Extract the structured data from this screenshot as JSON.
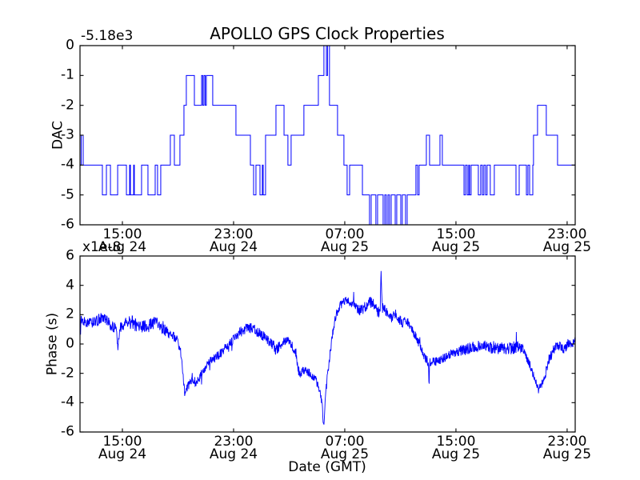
{
  "figure": {
    "title": "APOLLO GPS Clock Properties",
    "background": "#ffffff",
    "axis_color": "#000000"
  },
  "chart_data": [
    {
      "type": "line",
      "subplot": "top",
      "title": "APOLLO GPS Clock Properties",
      "ylabel": "DAC",
      "offset_text": "-5.18e3",
      "line_color": "#0000ff",
      "drawstyle": "steps-post",
      "ylim": [
        -6,
        0
      ],
      "yticks": [
        0,
        -1,
        -2,
        -3,
        -4,
        -5,
        -6
      ],
      "ytick_labels": [
        "0",
        "-1",
        "-2",
        "-3",
        "-4",
        "-5",
        "-6"
      ],
      "x_hours_span": [
        0,
        35.63
      ],
      "xticks_hours": [
        3.05,
        11.05,
        19.05,
        27.05,
        35.05
      ],
      "xtick_labels": [
        {
          "time": "15:00",
          "date": "Aug 24"
        },
        {
          "time": "23:00",
          "date": "Aug 24"
        },
        {
          "time": "07:00",
          "date": "Aug 25"
        },
        {
          "time": "15:00",
          "date": "Aug 25"
        },
        {
          "time": "23:00",
          "date": "Aug 25"
        }
      ],
      "steps": [
        [
          0,
          -4
        ],
        [
          0.09,
          -3
        ],
        [
          0.23,
          -4
        ],
        [
          1.61,
          -5
        ],
        [
          1.9,
          -4
        ],
        [
          2.19,
          -5
        ],
        [
          2.71,
          -4
        ],
        [
          3.34,
          -5
        ],
        [
          3.57,
          -4
        ],
        [
          3.63,
          -5
        ],
        [
          3.86,
          -4
        ],
        [
          3.91,
          -5
        ],
        [
          4.43,
          -4
        ],
        [
          4.89,
          -5
        ],
        [
          5.41,
          -4
        ],
        [
          5.58,
          -5
        ],
        [
          5.81,
          -4
        ],
        [
          6.5,
          -3
        ],
        [
          6.79,
          -4
        ],
        [
          7.19,
          -3
        ],
        [
          7.48,
          -2
        ],
        [
          7.65,
          -1
        ],
        [
          8.23,
          -2
        ],
        [
          8.75,
          -1
        ],
        [
          8.83,
          -2
        ],
        [
          8.92,
          -1
        ],
        [
          9.01,
          -2
        ],
        [
          9.09,
          -1
        ],
        [
          9.55,
          -2
        ],
        [
          11.22,
          -3
        ],
        [
          12.26,
          -4
        ],
        [
          12.49,
          -5
        ],
        [
          12.66,
          -4
        ],
        [
          12.95,
          -5
        ],
        [
          13.12,
          -4
        ],
        [
          13.18,
          -5
        ],
        [
          13.35,
          -3
        ],
        [
          14.1,
          -2
        ],
        [
          14.68,
          -3
        ],
        [
          14.96,
          -4
        ],
        [
          15.19,
          -3
        ],
        [
          16.11,
          -2
        ],
        [
          17.15,
          -1
        ],
        [
          17.55,
          0
        ],
        [
          17.73,
          -1
        ],
        [
          17.81,
          0
        ],
        [
          17.95,
          -2
        ],
        [
          18.53,
          -3
        ],
        [
          18.99,
          -4
        ],
        [
          19.22,
          -5
        ],
        [
          19.4,
          -4
        ],
        [
          20.32,
          -5
        ],
        [
          20.83,
          -6
        ],
        [
          20.95,
          -5
        ],
        [
          21.29,
          -6
        ],
        [
          21.41,
          -5
        ],
        [
          21.81,
          -6
        ],
        [
          21.93,
          -5
        ],
        [
          22.04,
          -6
        ],
        [
          22.16,
          -5
        ],
        [
          22.27,
          -6
        ],
        [
          22.39,
          -5
        ],
        [
          22.68,
          -6
        ],
        [
          22.79,
          -5
        ],
        [
          23.08,
          -6
        ],
        [
          23.19,
          -5
        ],
        [
          23.42,
          -6
        ],
        [
          23.54,
          -5
        ],
        [
          24.17,
          -4
        ],
        [
          24.29,
          -5
        ],
        [
          24.4,
          -4
        ],
        [
          24.92,
          -3
        ],
        [
          25.15,
          -4
        ],
        [
          25.9,
          -3
        ],
        [
          26.07,
          -4
        ],
        [
          27.63,
          -5
        ],
        [
          27.74,
          -4
        ],
        [
          27.86,
          -5
        ],
        [
          27.97,
          -4
        ],
        [
          28.03,
          -5
        ],
        [
          28.14,
          -4
        ],
        [
          28.66,
          -5
        ],
        [
          28.83,
          -4
        ],
        [
          28.95,
          -5
        ],
        [
          29.06,
          -4
        ],
        [
          29.18,
          -5
        ],
        [
          29.29,
          -4
        ],
        [
          29.52,
          -5
        ],
        [
          29.81,
          -4
        ],
        [
          31.37,
          -5
        ],
        [
          31.6,
          -4
        ],
        [
          32.12,
          -5
        ],
        [
          32.23,
          -4
        ],
        [
          32.35,
          -5
        ],
        [
          32.58,
          -4
        ],
        [
          32.63,
          -3
        ],
        [
          32.92,
          -2
        ],
        [
          33.55,
          -3
        ],
        [
          34.36,
          -4
        ],
        [
          35.63,
          -4
        ]
      ]
    },
    {
      "type": "line",
      "subplot": "bottom",
      "ylabel": "Phase (s)",
      "offset_text": "x1e-8",
      "xlabel": "Date (GMT)",
      "line_color": "#0000ff",
      "units": "1e-8 s",
      "ylim": [
        -6,
        6
      ],
      "yticks": [
        6,
        4,
        2,
        0,
        -2,
        -4,
        -6
      ],
      "ytick_labels": [
        "6",
        "4",
        "2",
        "0",
        "-2",
        "-4",
        "-6"
      ],
      "x_hours_span": [
        0,
        35.63
      ],
      "xticks_hours": [
        3.05,
        11.05,
        19.05,
        27.05,
        35.05
      ],
      "xtick_labels": [
        {
          "time": "15:00",
          "date": "Aug 24"
        },
        {
          "time": "23:00",
          "date": "Aug 24"
        },
        {
          "time": "07:00",
          "date": "Aug 25"
        },
        {
          "time": "15:00",
          "date": "Aug 25"
        },
        {
          "time": "23:00",
          "date": "Aug 25"
        }
      ],
      "anchors": [
        [
          0,
          1.7,
          0.35
        ],
        [
          0.6,
          1.4,
          0.35
        ],
        [
          1.2,
          1.6,
          0.4
        ],
        [
          1.7,
          1.8,
          0.4
        ],
        [
          2.3,
          1.2,
          0.35
        ],
        [
          2.6,
          1.0,
          0.4
        ],
        [
          2.73,
          -0.3,
          0.2
        ],
        [
          2.85,
          1.0,
          0.4
        ],
        [
          3.2,
          1.4,
          0.35
        ],
        [
          3.7,
          1.5,
          0.5
        ],
        [
          4.3,
          1.1,
          0.45
        ],
        [
          4.9,
          1.3,
          0.4
        ],
        [
          5.5,
          1.5,
          0.45
        ],
        [
          6.0,
          1.0,
          0.4
        ],
        [
          6.6,
          0.6,
          0.35
        ],
        [
          7.0,
          0.3,
          0.3
        ],
        [
          7.3,
          -0.8,
          0.3
        ],
        [
          7.48,
          -3.0,
          0.5
        ],
        [
          7.6,
          -3.2,
          0.45
        ],
        [
          7.77,
          -2.8,
          0.35
        ],
        [
          8.06,
          -2.5,
          0.35
        ],
        [
          8.35,
          -2.6,
          0.3
        ],
        [
          8.63,
          -2.2,
          0.3
        ],
        [
          8.92,
          -1.8,
          0.3
        ],
        [
          9.21,
          -1.3,
          0.3
        ],
        [
          9.78,
          -0.9,
          0.3
        ],
        [
          10.36,
          -0.4,
          0.3
        ],
        [
          10.94,
          0.2,
          0.3
        ],
        [
          11.51,
          0.8,
          0.35
        ],
        [
          12.09,
          1.2,
          0.4
        ],
        [
          12.66,
          0.9,
          0.35
        ],
        [
          13.24,
          0.5,
          0.35
        ],
        [
          13.81,
          0.0,
          0.35
        ],
        [
          14.1,
          -0.4,
          0.4
        ],
        [
          14.39,
          -0.1,
          0.35
        ],
        [
          14.68,
          0.2,
          0.3
        ],
        [
          14.96,
          0.2,
          0.3
        ],
        [
          15.25,
          -0.1,
          0.3
        ],
        [
          15.54,
          -0.6,
          0.3
        ],
        [
          15.71,
          -1.8,
          0.3
        ],
        [
          15.88,
          -2.0,
          0.3
        ],
        [
          16.11,
          -1.8,
          0.3
        ],
        [
          16.4,
          -1.9,
          0.3
        ],
        [
          16.69,
          -2.1,
          0.3
        ],
        [
          16.98,
          -2.5,
          0.3
        ],
        [
          17.27,
          -3.2,
          0.3
        ],
        [
          17.44,
          -4.2,
          0.25
        ],
        [
          17.52,
          -5.7,
          0.15
        ],
        [
          17.6,
          -4.8,
          0.25
        ],
        [
          17.67,
          -3.5,
          0.3
        ],
        [
          17.84,
          -1.8,
          0.3
        ],
        [
          18.01,
          -0.5,
          0.3
        ],
        [
          18.19,
          0.8,
          0.3
        ],
        [
          18.42,
          2.0,
          0.3
        ],
        [
          18.71,
          2.6,
          0.3
        ],
        [
          18.99,
          2.9,
          0.3
        ],
        [
          19.28,
          3.0,
          0.3
        ],
        [
          19.57,
          2.7,
          0.3
        ],
        [
          20.14,
          2.3,
          0.35
        ],
        [
          20.43,
          2.4,
          0.4
        ],
        [
          20.72,
          2.7,
          0.4
        ],
        [
          21.01,
          2.9,
          0.45
        ],
        [
          21.29,
          2.5,
          0.4
        ],
        [
          21.45,
          2.1,
          0.4
        ],
        [
          21.6,
          2.6,
          0.5
        ],
        [
          21.66,
          5.0,
          0.3
        ],
        [
          21.72,
          2.6,
          0.5
        ],
        [
          21.87,
          2.4,
          0.4
        ],
        [
          22.16,
          2.0,
          0.35
        ],
        [
          22.45,
          1.7,
          0.35
        ],
        [
          22.6,
          2.0,
          0.35
        ],
        [
          22.73,
          2.1,
          0.35
        ],
        [
          23.02,
          1.6,
          0.35
        ],
        [
          23.31,
          1.4,
          0.35
        ],
        [
          23.45,
          1.7,
          0.35
        ],
        [
          23.6,
          1.5,
          0.35
        ],
        [
          23.88,
          1.0,
          0.3
        ],
        [
          24.17,
          0.5,
          0.3
        ],
        [
          24.46,
          -0.1,
          0.3
        ],
        [
          24.75,
          -0.8,
          0.3
        ],
        [
          25.04,
          -1.2,
          0.3
        ],
        [
          25.08,
          -1.3,
          0.3
        ],
        [
          25.11,
          -3.2,
          0.15
        ],
        [
          25.15,
          -1.3,
          0.3
        ],
        [
          25.32,
          -1.1,
          0.3
        ],
        [
          25.61,
          -1.2,
          0.3
        ],
        [
          25.9,
          -1.1,
          0.3
        ],
        [
          26.47,
          -0.8,
          0.3
        ],
        [
          27.05,
          -0.55,
          0.3
        ],
        [
          27.62,
          -0.4,
          0.4
        ],
        [
          28.2,
          -0.25,
          0.4
        ],
        [
          28.78,
          -0.15,
          0.4
        ],
        [
          29.1,
          0.1,
          0.45
        ],
        [
          29.35,
          -0.3,
          0.4
        ],
        [
          29.93,
          -0.2,
          0.45
        ],
        [
          30.5,
          -0.35,
          0.45
        ],
        [
          31.08,
          -0.25,
          0.45
        ],
        [
          31.65,
          -0.2,
          0.4
        ],
        [
          31.94,
          -0.5,
          0.35
        ],
        [
          32.23,
          -1.1,
          0.3
        ],
        [
          32.46,
          -1.6,
          0.3
        ],
        [
          32.69,
          -2.3,
          0.3
        ],
        [
          32.92,
          -2.9,
          0.3
        ],
        [
          33.0,
          -3.2,
          0.3
        ],
        [
          33.15,
          -2.9,
          0.3
        ],
        [
          33.38,
          -2.4,
          0.3
        ],
        [
          33.61,
          -1.6,
          0.3
        ],
        [
          33.84,
          -0.9,
          0.35
        ],
        [
          34.07,
          -0.4,
          0.35
        ],
        [
          34.3,
          -0.15,
          0.35
        ],
        [
          34.53,
          -0.1,
          0.35
        ],
        [
          34.82,
          -0.3,
          0.35
        ],
        [
          35.11,
          0.0,
          0.35
        ],
        [
          35.4,
          -0.1,
          0.35
        ],
        [
          35.63,
          0.2,
          0.3
        ]
      ],
      "noise": {
        "seed": 13,
        "samples": 1700,
        "spike_prob": 0.015,
        "spike_scale": 2.5
      }
    }
  ]
}
